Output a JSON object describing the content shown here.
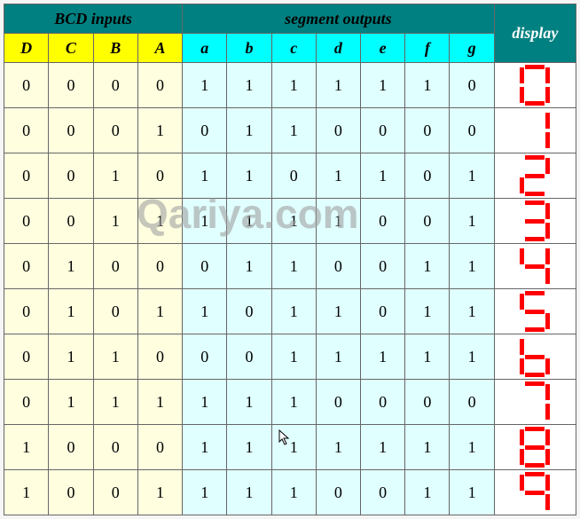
{
  "type": "table",
  "background_color": "#f5f5f5",
  "border_color": "#666666",
  "font_family": "Times New Roman",
  "font_size": 18,
  "header_group_bg": "#008080",
  "header_bcd_bg": "#ffff00",
  "header_seg_bg": "#00ffff",
  "header_display_bg": "#008080",
  "header_display_fg": "#ffffff",
  "cell_bcd_bg": "#ffffe0",
  "cell_seg_bg": "#e0ffff",
  "cell_display_bg": "#ffffff",
  "segment_color": "#ff0000",
  "watermark_text": "Qariya.com",
  "watermark_color": "rgba(160,160,160,0.6)",
  "headers": {
    "bcd_group": "BCD inputs",
    "seg_group": "segment outputs",
    "display": "display",
    "bcd_cols": [
      "D",
      "C",
      "B",
      "A"
    ],
    "seg_cols": [
      "a",
      "b",
      "c",
      "d",
      "e",
      "f",
      "g"
    ]
  },
  "rows": [
    {
      "bcd": [
        0,
        0,
        0,
        0
      ],
      "seg": [
        1,
        1,
        1,
        1,
        1,
        1,
        0
      ],
      "digit": 0
    },
    {
      "bcd": [
        0,
        0,
        0,
        1
      ],
      "seg": [
        0,
        1,
        1,
        0,
        0,
        0,
        0
      ],
      "digit": 1
    },
    {
      "bcd": [
        0,
        0,
        1,
        0
      ],
      "seg": [
        1,
        1,
        0,
        1,
        1,
        0,
        1
      ],
      "digit": 2
    },
    {
      "bcd": [
        0,
        0,
        1,
        1
      ],
      "seg": [
        1,
        1,
        1,
        1,
        0,
        0,
        1
      ],
      "digit": 3
    },
    {
      "bcd": [
        0,
        1,
        0,
        0
      ],
      "seg": [
        0,
        1,
        1,
        0,
        0,
        1,
        1
      ],
      "digit": 4
    },
    {
      "bcd": [
        0,
        1,
        0,
        1
      ],
      "seg": [
        1,
        0,
        1,
        1,
        0,
        1,
        1
      ],
      "digit": 5
    },
    {
      "bcd": [
        0,
        1,
        1,
        0
      ],
      "seg": [
        0,
        0,
        1,
        1,
        1,
        1,
        1
      ],
      "digit": 6
    },
    {
      "bcd": [
        0,
        1,
        1,
        1
      ],
      "seg": [
        1,
        1,
        1,
        0,
        0,
        0,
        0
      ],
      "digit": 7
    },
    {
      "bcd": [
        1,
        0,
        0,
        0
      ],
      "seg": [
        1,
        1,
        1,
        1,
        1,
        1,
        1
      ],
      "digit": 8
    },
    {
      "bcd": [
        1,
        0,
        0,
        1
      ],
      "seg": [
        1,
        1,
        1,
        0,
        0,
        1,
        1
      ],
      "digit": 9
    }
  ]
}
